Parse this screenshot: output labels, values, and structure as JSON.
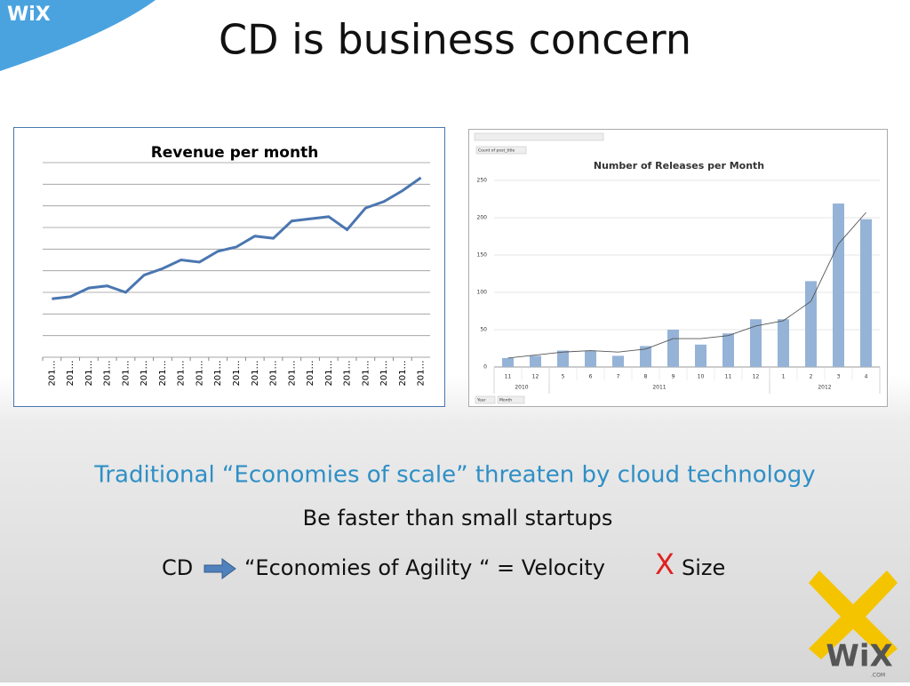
{
  "logo_top": "WiX",
  "title": "CD is business concern",
  "chart_data": [
    {
      "type": "line",
      "title": "Revenue per month",
      "color": "#4a76b0",
      "categories": [
        "201…",
        "201…",
        "201…",
        "201…",
        "201…",
        "201…",
        "201…",
        "201…",
        "201…",
        "201…",
        "201…",
        "201…",
        "201…",
        "201…",
        "201…",
        "201…",
        "201…",
        "201…",
        "201…",
        "201…",
        "201…"
      ],
      "values": [
        2.7,
        2.8,
        3.2,
        3.3,
        3.0,
        3.8,
        4.1,
        4.5,
        4.4,
        4.9,
        5.1,
        5.6,
        5.5,
        6.3,
        6.4,
        6.5,
        5.9,
        6.9,
        7.2,
        7.7,
        8.3
      ],
      "ylim": [
        0,
        9
      ],
      "yticks": [
        0,
        1,
        2,
        3,
        4,
        5,
        6,
        7,
        8,
        9
      ],
      "ytick_labels": false,
      "grid": true
    },
    {
      "type": "bar",
      "title": "Number of Releases per Month",
      "field_buttons": [
        "Count of post_title",
        "Year",
        "Month"
      ],
      "color": "#95b3d7",
      "trend_color": "#555555",
      "groups": [
        {
          "label": "2010",
          "categories": [
            "11",
            "12"
          ]
        },
        {
          "label": "2011",
          "categories": [
            "5",
            "6",
            "7",
            "8",
            "9",
            "10",
            "11",
            "12"
          ]
        },
        {
          "label": "2012",
          "categories": [
            "1",
            "2",
            "3",
            "4"
          ]
        }
      ],
      "values": [
        12,
        15,
        22,
        22,
        15,
        28,
        50,
        30,
        45,
        64,
        64,
        115,
        219,
        198
      ],
      "trend": [
        12,
        16,
        20,
        22,
        20,
        24,
        38,
        38,
        42,
        55,
        62,
        88,
        165,
        207
      ],
      "ylim": [
        0,
        250
      ],
      "yticks": [
        0,
        50,
        100,
        150,
        200,
        250
      ],
      "grid": true
    }
  ],
  "lines": {
    "line1": "Traditional “Economies of scale” threaten by cloud technology",
    "line2": "Be faster than small startups",
    "line3_start": "CD",
    "line3_middle": "“Economies of Agility “ = Velocity",
    "line3_x": "X",
    "line3_end": "Size"
  },
  "logo_bottom": "WiX",
  "logo_bottom_sub": ".COM"
}
